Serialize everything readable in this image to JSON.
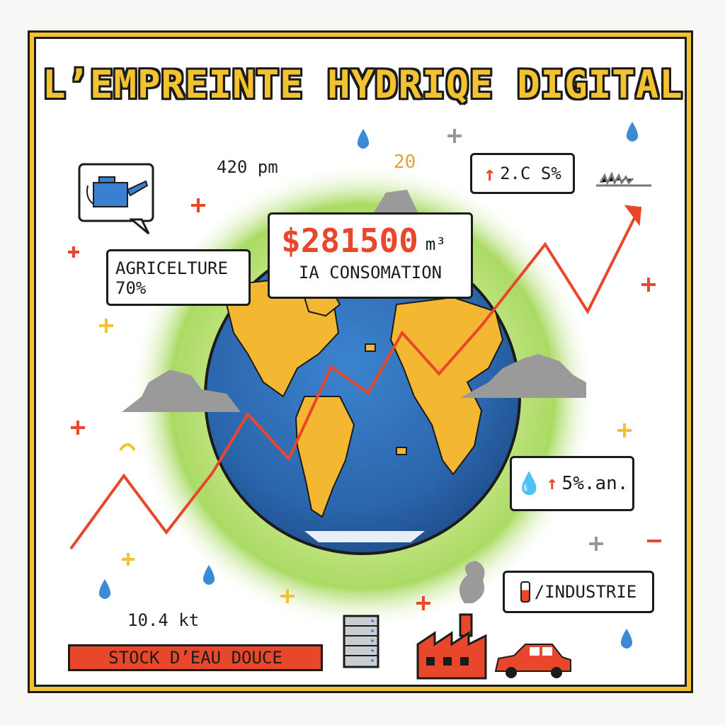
{
  "title": "L’EMPREINTE HYDRIQE DIGITAL",
  "labels": {
    "time": "420 pm",
    "counter": "20",
    "stock_amount": "10.4 kt",
    "stock_label": "STOCK D’EAU DOUCE"
  },
  "bubbles": {
    "agriculture_line1": "AGRICELTURE",
    "agriculture_line2": "70%",
    "consumption_value": "$281500",
    "consumption_unit": "m³",
    "consumption_label": "IA CONSOMATION",
    "growth": "2.C S%",
    "water_rate": "5%.an.",
    "industry": "/INDUSTRIE"
  },
  "colors": {
    "accent_yellow": "#f2c230",
    "alert_red": "#e8472b",
    "ocean_blue": "#2f6fb6",
    "land_yellow": "#f4b731",
    "glow_green": "#9ad44f"
  },
  "icons": [
    "watering-can-icon",
    "water-drop-icon",
    "arrow-up-icon",
    "server-rack-icon",
    "factory-icon",
    "car-icon",
    "cloud-icon",
    "globe-icon",
    "thermometer-icon"
  ]
}
